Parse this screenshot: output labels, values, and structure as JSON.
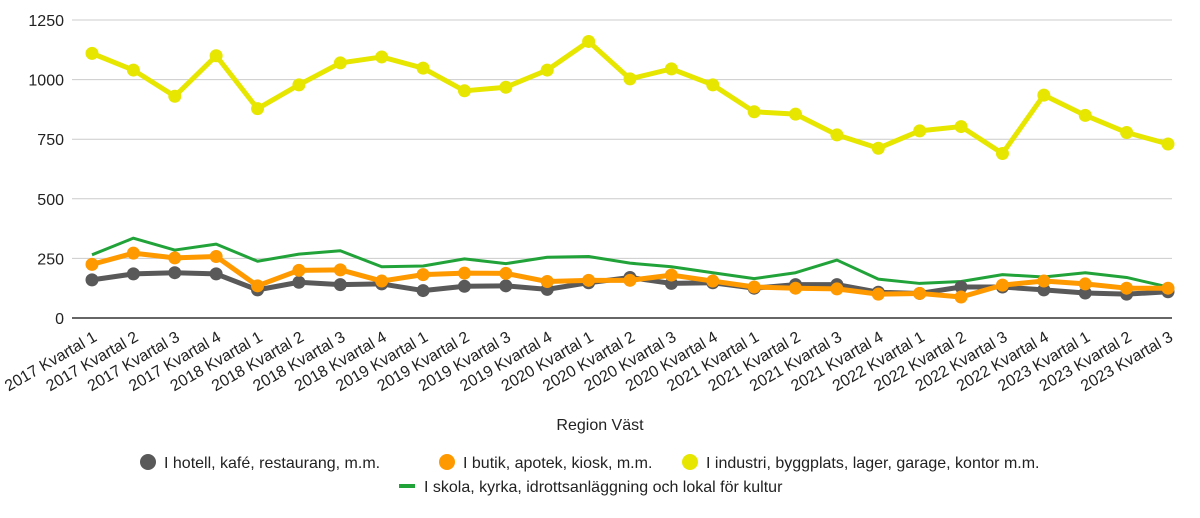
{
  "chart_data": {
    "type": "line",
    "title": "",
    "xlabel": "Region Väst",
    "ylabel": "",
    "ylim": [
      0,
      1250
    ],
    "yticks": [
      0,
      250,
      500,
      750,
      1000,
      1250
    ],
    "grid": true,
    "legend_placement": "bottom",
    "categories": [
      "2017 Kvartal 1",
      "2017 Kvartal 2",
      "2017 Kvartal 3",
      "2017 Kvartal 4",
      "2018 Kvartal 1",
      "2018 Kvartal 2",
      "2018 Kvartal 3",
      "2018 Kvartal 4",
      "2019 Kvartal 1",
      "2019 Kvartal 2",
      "2019 Kvartal 3",
      "2019 Kvartal 4",
      "2020 Kvartal 1",
      "2020 Kvartal 2",
      "2020 Kvartal 3",
      "2020 Kvartal 4",
      "2021 Kvartal 1",
      "2021 Kvartal 2",
      "2021 Kvartal 3",
      "2021 Kvartal 4",
      "2022 Kvartal 1",
      "2022 Kvartal 2",
      "2022 Kvartal 3",
      "2022 Kvartal 4",
      "2023 Kvartal 1",
      "2023 Kvartal 2",
      "2023 Kvartal 3"
    ],
    "series": [
      {
        "name": "I hotell, kafé, restaurang, m.m.",
        "color": "#595959",
        "markers": true,
        "values": [
          160,
          185,
          190,
          185,
          118,
          150,
          140,
          143,
          115,
          133,
          135,
          120,
          148,
          170,
          145,
          148,
          125,
          140,
          140,
          108,
          103,
          130,
          130,
          118,
          105,
          100,
          110
        ]
      },
      {
        "name": "I butik, apotek, kiosk, m.m.",
        "color": "#ff9900",
        "markers": true,
        "values": [
          225,
          272,
          252,
          258,
          135,
          200,
          202,
          155,
          182,
          188,
          187,
          153,
          158,
          158,
          180,
          155,
          130,
          125,
          122,
          100,
          103,
          88,
          138,
          155,
          143,
          125,
          125
        ]
      },
      {
        "name": "I industri, byggplats, lager, garage, kontor m.m.",
        "color": "#e6e600",
        "markers": true,
        "values": [
          1110,
          1040,
          930,
          1100,
          878,
          978,
          1070,
          1095,
          1048,
          953,
          968,
          1040,
          1160,
          1003,
          1045,
          978,
          865,
          855,
          768,
          712,
          785,
          803,
          690,
          935,
          850,
          778,
          730
        ]
      },
      {
        "name": "I skola, kyrka, idrottsanläggning och lokal för kultur",
        "color": "#22a33a",
        "markers": false,
        "values": [
          265,
          335,
          285,
          310,
          238,
          268,
          282,
          215,
          218,
          248,
          228,
          255,
          258,
          230,
          215,
          190,
          165,
          190,
          243,
          163,
          145,
          153,
          182,
          172,
          190,
          170,
          130
        ]
      }
    ]
  }
}
